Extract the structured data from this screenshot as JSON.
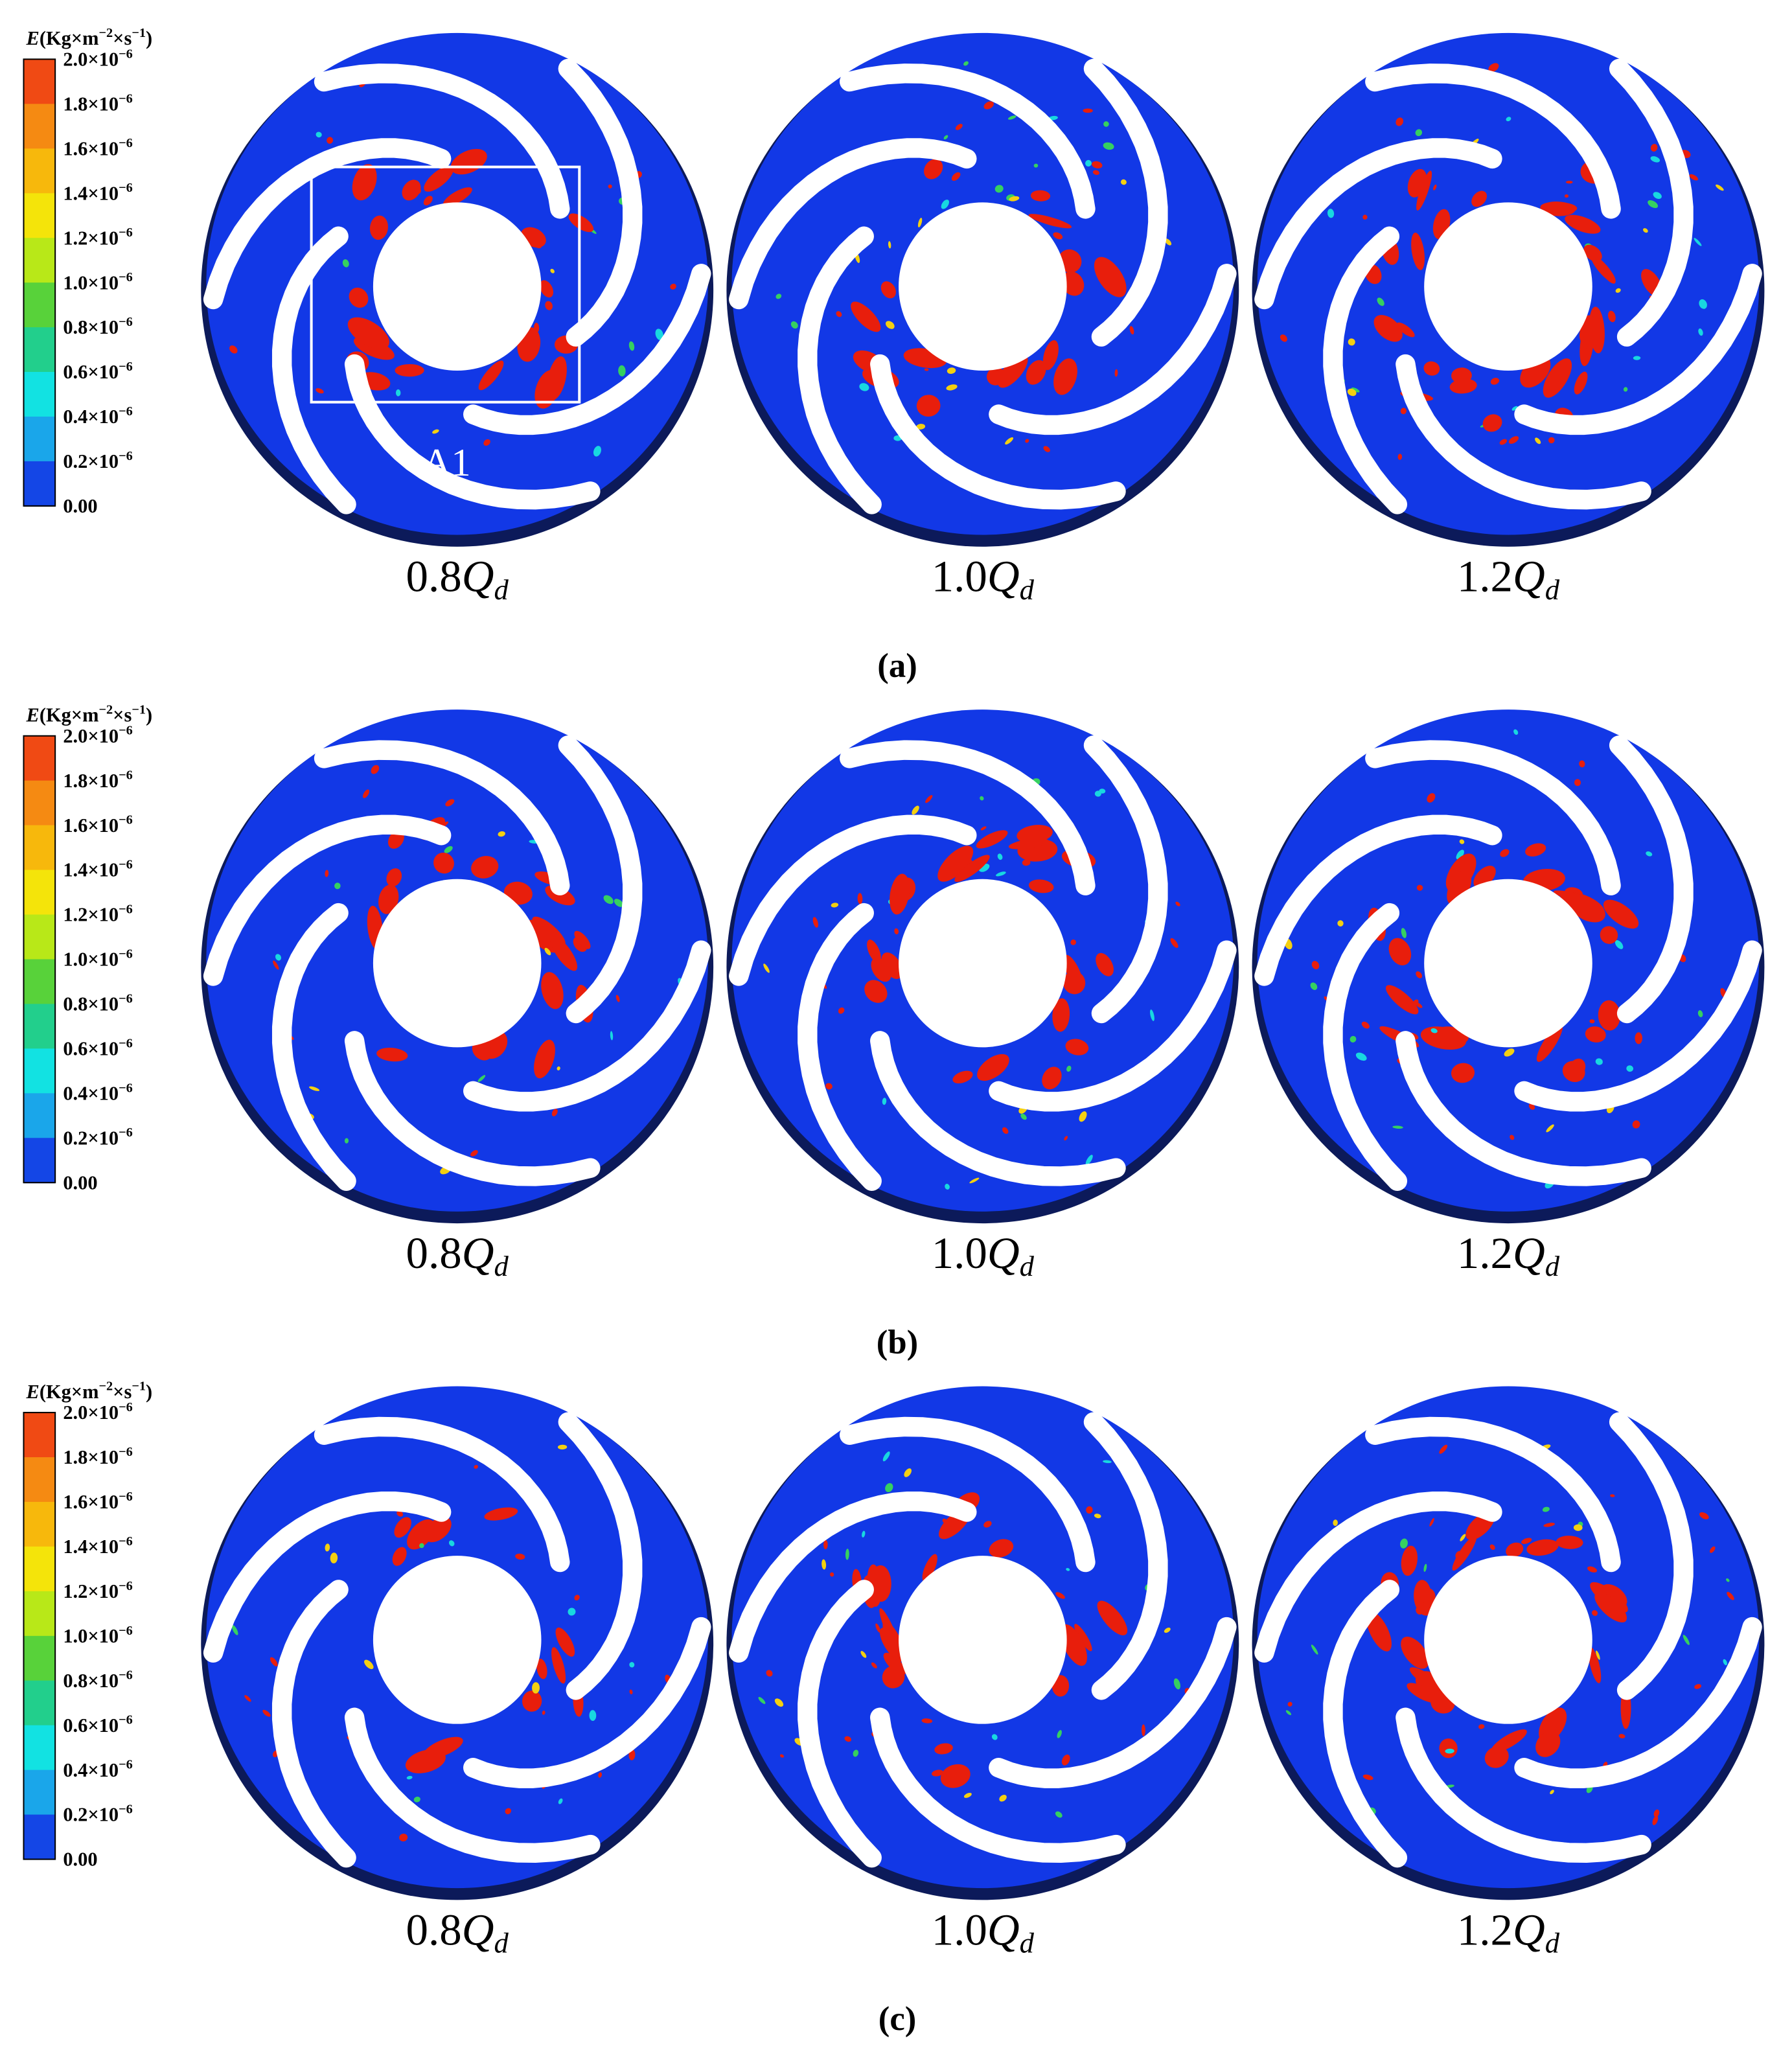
{
  "panels": [
    {
      "label": "(a)",
      "colorbar": {
        "symbol": "E",
        "unit_parts": [
          "(Kg×m",
          "−2",
          "×s",
          "−1",
          ")"
        ],
        "ticks": [
          {
            "mantissa": "2.0×10",
            "exponent": "−6"
          },
          {
            "mantissa": "1.8×10",
            "exponent": "−6"
          },
          {
            "mantissa": "1.6×10",
            "exponent": "−6"
          },
          {
            "mantissa": "1.4×10",
            "exponent": "−6"
          },
          {
            "mantissa": "1.2×10",
            "exponent": "−6"
          },
          {
            "mantissa": "1.0×10",
            "exponent": "−6"
          },
          {
            "mantissa": "0.8×10",
            "exponent": "−6"
          },
          {
            "mantissa": "0.6×10",
            "exponent": "−6"
          },
          {
            "mantissa": "0.4×10",
            "exponent": "−6"
          },
          {
            "mantissa": "0.2×10",
            "exponent": "−6"
          },
          {
            "mantissa": "0.00"
          }
        ],
        "colors": [
          "#f04a14",
          "#f58a12",
          "#f7b80c",
          "#f4e40a",
          "#b8e818",
          "#58d23a",
          "#22cf8c",
          "#12e2e2",
          "#1aa6ea",
          "#1446e6"
        ]
      },
      "annotation": "A1",
      "impellers": [
        {
          "coef": "0.8",
          "symbol": "Q",
          "subscript": "d"
        },
        {
          "coef": "1.0",
          "symbol": "Q",
          "subscript": "d"
        },
        {
          "coef": "1.2",
          "symbol": "Q",
          "subscript": "d"
        }
      ]
    },
    {
      "label": "(b)",
      "colorbar": {
        "symbol": "E",
        "unit_parts": [
          "(Kg×m",
          "−2",
          "×s",
          "−1",
          ")"
        ],
        "ticks": [
          {
            "mantissa": "2.0×10",
            "exponent": "−6"
          },
          {
            "mantissa": "1.8×10",
            "exponent": "−6"
          },
          {
            "mantissa": "1.6×10",
            "exponent": "−6"
          },
          {
            "mantissa": "1.4×10",
            "exponent": "−6"
          },
          {
            "mantissa": "1.2×10",
            "exponent": "−6"
          },
          {
            "mantissa": "1.0×10",
            "exponent": "−6"
          },
          {
            "mantissa": "0.8×10",
            "exponent": "−6"
          },
          {
            "mantissa": "0.6×10",
            "exponent": "−6"
          },
          {
            "mantissa": "0.4×10",
            "exponent": "−6"
          },
          {
            "mantissa": "0.2×10",
            "exponent": "−6"
          },
          {
            "mantissa": "0.00"
          }
        ],
        "colors": [
          "#f04a14",
          "#f58a12",
          "#f7b80c",
          "#f4e40a",
          "#b8e818",
          "#58d23a",
          "#22cf8c",
          "#12e2e2",
          "#1aa6ea",
          "#1446e6"
        ]
      },
      "impellers": [
        {
          "coef": "0.8",
          "symbol": "Q",
          "subscript": "d"
        },
        {
          "coef": "1.0",
          "symbol": "Q",
          "subscript": "d"
        },
        {
          "coef": "1.2",
          "symbol": "Q",
          "subscript": "d"
        }
      ]
    },
    {
      "label": "(c)",
      "colorbar": {
        "symbol": "E",
        "unit_parts": [
          "(Kg×m",
          "−2",
          "×s",
          "−1",
          ")"
        ],
        "ticks": [
          {
            "mantissa": "2.0×10",
            "exponent": "−6"
          },
          {
            "mantissa": "1.8×10",
            "exponent": "−6"
          },
          {
            "mantissa": "1.6×10",
            "exponent": "−6"
          },
          {
            "mantissa": "1.4×10",
            "exponent": "−6"
          },
          {
            "mantissa": "1.2×10",
            "exponent": "−6"
          },
          {
            "mantissa": "1.0×10",
            "exponent": "−6"
          },
          {
            "mantissa": "0.8×10",
            "exponent": "−6"
          },
          {
            "mantissa": "0.6×10",
            "exponent": "−6"
          },
          {
            "mantissa": "0.4×10",
            "exponent": "−6"
          },
          {
            "mantissa": "0.2×10",
            "exponent": "−6"
          },
          {
            "mantissa": "0.00"
          }
        ],
        "colors": [
          "#f04a14",
          "#f58a12",
          "#f7b80c",
          "#f4e40a",
          "#b8e818",
          "#58d23a",
          "#22cf8c",
          "#12e2e2",
          "#1aa6ea",
          "#1446e6"
        ]
      },
      "impellers": [
        {
          "coef": "0.8",
          "symbol": "Q",
          "subscript": "d"
        },
        {
          "coef": "1.0",
          "symbol": "Q",
          "subscript": "d"
        },
        {
          "coef": "1.2",
          "symbol": "Q",
          "subscript": "d"
        }
      ]
    }
  ]
}
